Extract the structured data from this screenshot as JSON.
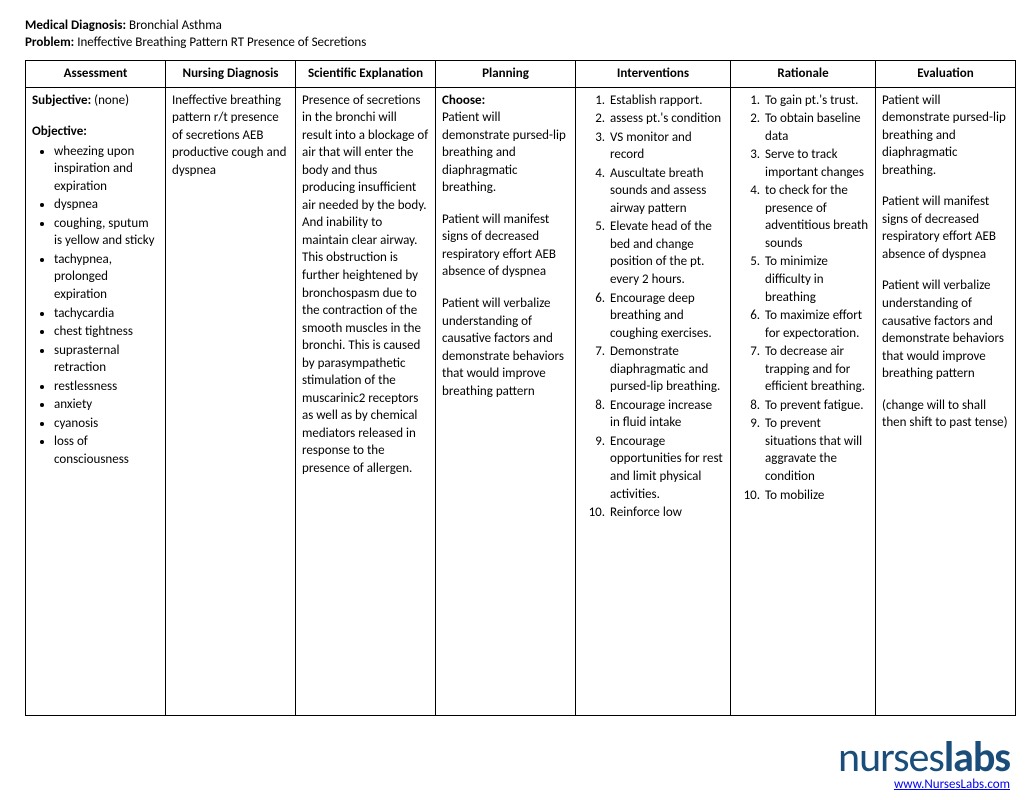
{
  "header": {
    "diag_label": "Medical Diagnosis:",
    "diag_value": "Bronchial Asthma",
    "prob_label": "Problem:",
    "prob_value": "Ineffective Breathing Pattern RT Presence of Secretions"
  },
  "columns": {
    "assessment": "Assessment",
    "nursing": "Nursing Diagnosis",
    "scientific": "Scientific Explanation",
    "planning": "Planning",
    "interventions": "Interventions",
    "rationale": "Rationale",
    "evaluation": "Evaluation"
  },
  "assessment": {
    "subj_label": "Subjective:",
    "subj_value": "(none)",
    "obj_label": "Objective:",
    "obj_items": [
      "wheezing upon inspiration and expiration",
      "dyspnea",
      "coughing, sputum is yellow and sticky",
      "tachypnea, prolonged expiration",
      "tachycardia",
      "chest tightness",
      "suprasternal retraction",
      "restlessness",
      "anxiety",
      "cyanosis",
      "loss of consciousness"
    ]
  },
  "nursing_dx": "Ineffective breathing pattern r/t presence of secretions AEB productive cough and dyspnea",
  "scientific": "Presence of secretions in the bronchi will result into a blockage of air that will enter the body and thus producing insufficient air needed by the body. And inability to maintain clear airway. This obstruction is further heightened by bronchospasm due to the contraction of the smooth muscles in the bronchi. This is caused by parasympathetic stimulation of the muscarinic2 receptors as well as by chemical mediators released in response to the presence of allergen.",
  "planning": {
    "choose_label": "Choose:",
    "p1": "Patient will demonstrate pursed-lip breathing and diaphragmatic breathing.",
    "p2": "Patient will manifest signs of decreased respiratory effort AEB absence of dyspnea",
    "p3": "Patient will verbalize understanding of causative factors and demonstrate behaviors that would improve breathing pattern"
  },
  "interventions": [
    "Establish rapport.",
    "assess pt.'s condition",
    "VS monitor and record",
    "Auscultate breath sounds and assess airway pattern",
    "Elevate head of the bed and change position of the pt. every 2 hours.",
    "Encourage deep breathing and coughing exercises.",
    "Demonstrate diaphragmatic and pursed-lip breathing.",
    "Encourage increase in fluid intake",
    "Encourage opportunities for rest and limit physical activities.",
    "Reinforce low"
  ],
  "rationale": [
    "To gain pt.'s trust.",
    "To obtain baseline data",
    "Serve to track important changes",
    "to check for the presence of adventitious breath sounds",
    "To  minimize difficulty in breathing",
    "To maximize effort for expectoration.",
    "To decrease air trapping and for efficient breathing.",
    "To prevent fatigue.",
    "To prevent situations that will aggravate the condition",
    "To mobilize"
  ],
  "evaluation": {
    "p1": "Patient will demonstrate pursed-lip breathing and diaphragmatic breathing.",
    "p2": "Patient will manifest signs of decreased respiratory effort AEB absence of dyspnea",
    "p3": "Patient will verbalize understanding of causative factors and demonstrate behaviors that would improve breathing pattern",
    "note": "(change will to shall then shift to past tense)"
  },
  "footer": {
    "logo_light": "nurses",
    "logo_bold": "labs",
    "link": "www.NursesLabs.com"
  }
}
